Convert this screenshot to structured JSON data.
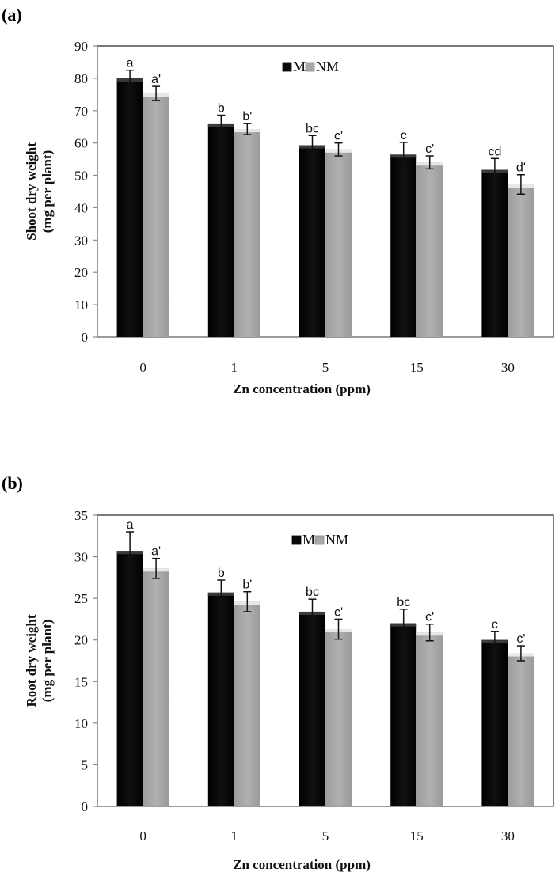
{
  "chart_data": [
    {
      "type": "bar",
      "panel_label": "(a)",
      "title": "",
      "xlabel": "Zn concentration (ppm)",
      "ylabel_lines": [
        "Shoot dry weight",
        "(mg per plant)"
      ],
      "ylim": [
        0,
        90
      ],
      "yticks": [
        0,
        10,
        20,
        30,
        40,
        50,
        60,
        70,
        80,
        90
      ],
      "categories": [
        "0",
        "1",
        "5",
        "15",
        "30"
      ],
      "legend_position": "top",
      "grid": false,
      "series": [
        {
          "name": "M",
          "color": "#0a0a0a",
          "values": [
            80.0,
            65.8,
            59.3,
            56.4,
            51.7
          ],
          "errors": [
            2.5,
            2.8,
            3.0,
            3.8,
            3.5
          ],
          "labels": [
            "a",
            "b",
            "bc",
            "c",
            "cd"
          ]
        },
        {
          "name": "NM",
          "color": "#a8a8a8",
          "values": [
            75.3,
            64.3,
            58.0,
            54.0,
            47.2
          ],
          "errors": [
            2.2,
            1.7,
            2.0,
            2.0,
            3.0
          ],
          "labels": [
            "a'",
            "b'",
            "c'",
            "c'",
            "d'"
          ]
        }
      ]
    },
    {
      "type": "bar",
      "panel_label": "(b)",
      "title": "",
      "xlabel": "Zn concentration (ppm)",
      "ylabel_lines": [
        "Root dry weight",
        "(mg per plant)"
      ],
      "ylim": [
        0,
        35
      ],
      "yticks": [
        0,
        5,
        10,
        15,
        20,
        25,
        30,
        35
      ],
      "categories": [
        "0",
        "1",
        "5",
        "15",
        "30"
      ],
      "legend_position": "top",
      "grid": false,
      "series": [
        {
          "name": "M",
          "color": "#0a0a0a",
          "values": [
            30.7,
            25.7,
            23.4,
            22.0,
            20.0
          ],
          "errors": [
            2.3,
            1.5,
            1.5,
            1.7,
            1.0
          ],
          "labels": [
            "a",
            "b",
            "bc",
            "bc",
            "c"
          ]
        },
        {
          "name": "NM",
          "color": "#a8a8a8",
          "values": [
            28.6,
            24.6,
            21.3,
            20.9,
            18.4
          ],
          "errors": [
            1.2,
            1.2,
            1.2,
            1.0,
            0.9
          ],
          "labels": [
            "a'",
            "b'",
            "c'",
            "c'",
            "c'"
          ]
        }
      ]
    }
  ]
}
